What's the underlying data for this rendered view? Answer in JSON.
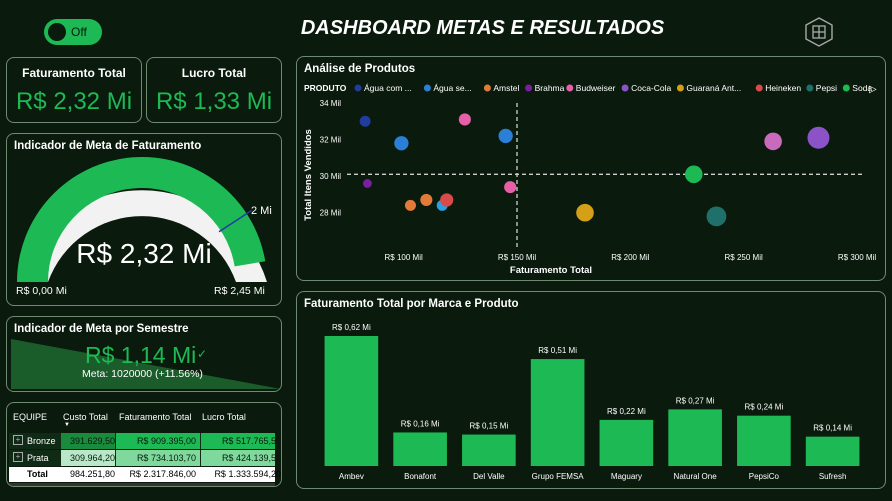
{
  "header": {
    "title": "DASHBOARD METAS E RESULTADOS",
    "toggle_label": "Off"
  },
  "kpis": {
    "faturamento": {
      "title": "Faturamento Total",
      "value": "R$ 2,32 Mi"
    },
    "lucro": {
      "title": "Lucro Total",
      "value": "R$ 1,33 Mi"
    }
  },
  "gauge": {
    "title": "Indicador de Meta de Faturamento",
    "value": "R$ 2,32 Mi",
    "min_label": "R$ 0,00 Mi",
    "max_label": "R$ 2,45 Mi",
    "target_label": "2 Mi",
    "fill_fraction": 0.947,
    "target_fraction": 0.816
  },
  "semester": {
    "title": "Indicador de Meta por Semestre",
    "value": "R$ 1,14 Mi",
    "meta_text": "Meta: 1020000 (+11.56%)"
  },
  "table": {
    "headers": [
      "EQUIPE",
      "Custo Total",
      "Faturamento Total",
      "Lucro Total"
    ],
    "rows": [
      {
        "label": "Bronze",
        "custo": "391.629,50",
        "faturamento": "R$ 909.395,00",
        "lucro": "R$ 517.765,50"
      },
      {
        "label": "Prata",
        "custo": "309.964,20",
        "faturamento": "R$ 734.103,70",
        "lucro": "R$ 424.139,50"
      }
    ],
    "total": {
      "label": "Total",
      "custo": "984.251,80",
      "faturamento": "R$ 2.317.846,00",
      "lucro": "R$ 1.333.594,20"
    }
  },
  "colors": {
    "accent": "#1db954",
    "background": "#0a1a0d",
    "border": "#6f8a73"
  },
  "chart_data": [
    {
      "type": "scatter",
      "title": "Análise de Produtos",
      "legend_title": "PRODUTO",
      "xlabel": "Faturamento Total",
      "ylabel": "Total Itens Vendidos",
      "xlim": [
        75,
        300
      ],
      "ylim": [
        27,
        34
      ],
      "x_ticks": [
        "R$ 100 Mil",
        "R$ 150 Mil",
        "R$ 200 Mil",
        "R$ 250 Mil",
        "R$ 300 Mil"
      ],
      "x_tick_values": [
        100,
        150,
        200,
        250,
        300
      ],
      "y_ticks": [
        "28 Mil",
        "30 Mil",
        "32 Mil",
        "34 Mil"
      ],
      "y_tick_values": [
        28,
        30,
        32,
        34
      ],
      "ref_x": 150,
      "ref_y": 30.1,
      "legend": [
        {
          "name": "Água com ...",
          "color": "#1f3c9e"
        },
        {
          "name": "Água se...",
          "color": "#2b7fd6"
        },
        {
          "name": "Amstel",
          "color": "#e07b39"
        },
        {
          "name": "Brahma",
          "color": "#7b1fa2"
        },
        {
          "name": "Budweiser",
          "color": "#e75fa8"
        },
        {
          "name": "Coca-Cola",
          "color": "#8c52c8"
        },
        {
          "name": "Guaraná Ant...",
          "color": "#d4a017"
        },
        {
          "name": "Heineken",
          "color": "#d94a4a"
        },
        {
          "name": "Pepsi",
          "color": "#1f6f6a"
        },
        {
          "name": "Soda",
          "color": "#1db954"
        }
      ],
      "points": [
        {
          "x": 83,
          "y": 33.0,
          "size": 1.0,
          "color": "#1f3c9e"
        },
        {
          "x": 84,
          "y": 29.6,
          "size": 0.8,
          "color": "#7b1fa2"
        },
        {
          "x": 99,
          "y": 31.8,
          "size": 1.3,
          "color": "#2b7fd6"
        },
        {
          "x": 103,
          "y": 28.4,
          "size": 1.0,
          "color": "#e07b39"
        },
        {
          "x": 110,
          "y": 28.7,
          "size": 1.1,
          "color": "#e07b39"
        },
        {
          "x": 117,
          "y": 28.4,
          "size": 1.0,
          "color": "#2b9fe0"
        },
        {
          "x": 119,
          "y": 28.7,
          "size": 1.2,
          "color": "#d94a4a"
        },
        {
          "x": 127,
          "y": 33.1,
          "size": 1.1,
          "color": "#e75fa8"
        },
        {
          "x": 145,
          "y": 32.2,
          "size": 1.3,
          "color": "#2b7fd6"
        },
        {
          "x": 147,
          "y": 29.4,
          "size": 1.1,
          "color": "#e75fa8"
        },
        {
          "x": 180,
          "y": 28.0,
          "size": 1.6,
          "color": "#d4a017"
        },
        {
          "x": 228,
          "y": 30.1,
          "size": 1.6,
          "color": "#1db954"
        },
        {
          "x": 238,
          "y": 27.8,
          "size": 1.8,
          "color": "#1f6f6a"
        },
        {
          "x": 263,
          "y": 31.9,
          "size": 1.6,
          "color": "#c96bbd"
        },
        {
          "x": 283,
          "y": 32.1,
          "size": 2.0,
          "color": "#8c52c8"
        }
      ]
    },
    {
      "type": "bar",
      "title": "Faturamento Total por Marca e Produto",
      "categories": [
        "Ambev",
        "Bonafont",
        "Del Valle",
        "Grupo FEMSA",
        "Maguary",
        "Natural One",
        "PepsiCo",
        "Sufresh"
      ],
      "values": [
        0.62,
        0.16,
        0.15,
        0.51,
        0.22,
        0.27,
        0.24,
        0.14
      ],
      "labels": [
        "R$ 0,62 Mi",
        "R$ 0,16 Mi",
        "R$ 0,15 Mi",
        "R$ 0,51 Mi",
        "R$ 0,22 Mi",
        "R$ 0,27 Mi",
        "R$ 0,24 Mi",
        "R$ 0,14 Mi"
      ],
      "ylim": [
        0,
        0.62
      ]
    }
  ]
}
